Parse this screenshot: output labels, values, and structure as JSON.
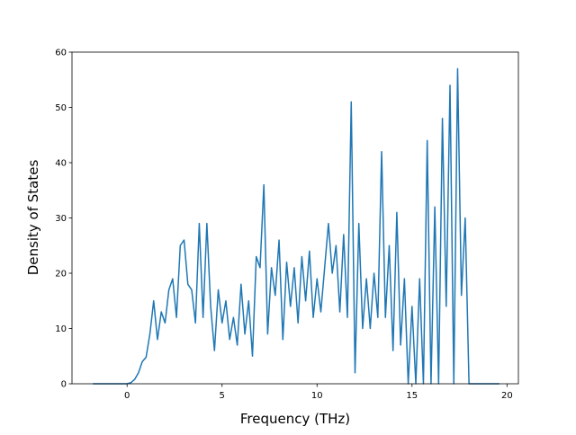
{
  "chart_data": {
    "type": "line",
    "xlabel": "Frequency (THz)",
    "ylabel": "Density of States",
    "x": [
      -1.8,
      -1.6,
      -1.4,
      -1.2,
      -1.0,
      -0.8,
      -0.6,
      -0.4,
      -0.2,
      0,
      0.2,
      0.4,
      0.6,
      0.8,
      1.0,
      1.2,
      1.4,
      1.6,
      1.8,
      2.0,
      2.2,
      2.4,
      2.6,
      2.8,
      3.0,
      3.2,
      3.4,
      3.6,
      3.8,
      4.0,
      4.2,
      4.4,
      4.6,
      4.8,
      5.0,
      5.2,
      5.4,
      5.6,
      5.8,
      6.0,
      6.2,
      6.4,
      6.6,
      6.8,
      7.0,
      7.2,
      7.4,
      7.6,
      7.8,
      8.0,
      8.2,
      8.4,
      8.6,
      8.8,
      9.0,
      9.2,
      9.4,
      9.6,
      9.8,
      10.0,
      10.2,
      10.4,
      10.6,
      10.8,
      11.0,
      11.2,
      11.4,
      11.6,
      11.8,
      12.0,
      12.2,
      12.4,
      12.6,
      12.8,
      13.0,
      13.2,
      13.4,
      13.6,
      13.8,
      14.0,
      14.2,
      14.4,
      14.6,
      14.8,
      15.0,
      15.2,
      15.4,
      15.6,
      15.8,
      16.0,
      16.2,
      16.4,
      16.6,
      16.8,
      17.0,
      17.2,
      17.4,
      17.6,
      17.8,
      18.0,
      18.2,
      18.4,
      18.6,
      18.8,
      19.0,
      19.2,
      19.4,
      19.6
    ],
    "series": [
      {
        "color": "#1f77b4",
        "values": [
          0,
          0,
          0,
          0,
          0,
          0,
          0,
          0,
          0,
          0,
          0.2,
          0.8,
          2,
          4,
          4.8,
          9,
          15,
          8,
          13,
          11,
          17,
          19,
          12,
          25,
          26,
          18,
          17,
          11,
          29,
          12,
          29,
          14,
          6,
          17,
          11,
          15,
          8,
          12,
          7,
          18,
          9,
          15,
          5,
          23,
          21,
          36,
          9,
          21,
          16,
          26,
          8,
          22,
          14,
          21,
          11,
          23,
          15,
          24,
          12,
          19,
          13,
          21,
          29,
          20,
          25,
          13,
          27,
          12,
          51,
          2,
          29,
          10,
          19,
          10,
          20,
          12,
          42,
          12,
          25,
          6,
          31,
          7,
          19,
          0,
          14,
          0,
          19,
          0,
          44,
          0,
          32,
          0,
          48,
          14,
          54,
          0,
          57,
          16,
          30,
          0,
          0,
          0,
          0,
          0,
          0,
          0,
          0,
          0
        ]
      }
    ],
    "xlim": [
      -2.9,
      20.6
    ],
    "ylim": [
      0,
      60
    ],
    "xticks": [
      0,
      5,
      10,
      15,
      20
    ],
    "yticks": [
      0,
      10,
      20,
      30,
      40,
      50,
      60
    ]
  }
}
